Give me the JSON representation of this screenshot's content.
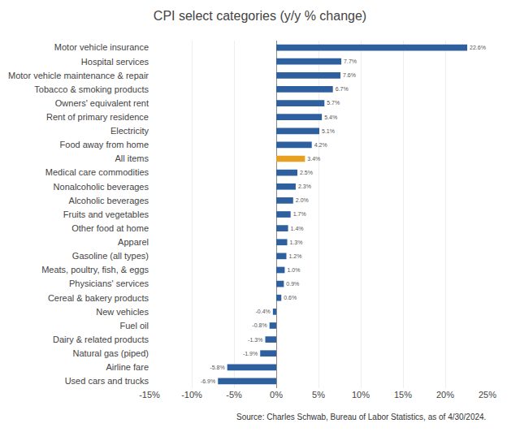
{
  "chart_data": {
    "type": "bar",
    "orientation": "horizontal",
    "title": "CPI select categories (y/y % change)",
    "annotations": [
      "Source: Charles Schwab, Bureau of Labor Statistics, as of 4/30/2024."
    ],
    "categories": [
      "Motor vehicle insurance",
      "Hospital services",
      "Motor vehicle maintenance & repair",
      "Tobacco & smoking products",
      "Owners' equivalent rent",
      "Rent of primary residence",
      "Electricity",
      "Food away from home",
      "All items",
      "Medical care commodities",
      "Nonalcoholic beverages",
      "Alcoholic beverages",
      "Fruits and vegetables",
      "Other food at home",
      "Apparel",
      "Gasoline (all types)",
      "Meats, poultry, fish, & eggs",
      "Physicians' services",
      "Cereal & bakery products",
      "New vehicles",
      "Fuel oil",
      "Dairy & related products",
      "Natural gas (piped)",
      "Airline fare",
      "Used cars and trucks"
    ],
    "values": [
      22.6,
      7.7,
      7.6,
      6.7,
      5.7,
      5.4,
      5.1,
      4.2,
      3.4,
      2.5,
      2.3,
      2.0,
      1.7,
      1.4,
      1.3,
      1.2,
      1.0,
      0.9,
      0.6,
      -0.4,
      -0.8,
      -1.3,
      -1.9,
      -5.8,
      -6.9
    ],
    "value_labels": [
      "22.6%",
      "7.7%",
      "7.6%",
      "6.7%",
      "5.7%",
      "5.4%",
      "5.1%",
      "4.2%",
      "3.4%",
      "2.5%",
      "2.3%",
      "2.0%",
      "1.7%",
      "1.4%",
      "1.3%",
      "1.2%",
      "1.0%",
      "0.9%",
      "0.6%",
      "-0.4%",
      "-0.8%",
      "-1.3%",
      "-1.9%",
      "-5.8%",
      "-6.9%"
    ],
    "data_labels": true,
    "colors": [
      "#2E5F9E",
      "#2E5F9E",
      "#2E5F9E",
      "#2E5F9E",
      "#2E5F9E",
      "#2E5F9E",
      "#2E5F9E",
      "#2E5F9E",
      "#E8A020",
      "#2E5F9E",
      "#2E5F9E",
      "#2E5F9E",
      "#2E5F9E",
      "#2E5F9E",
      "#2E5F9E",
      "#2E5F9E",
      "#2E5F9E",
      "#2E5F9E",
      "#2E5F9E",
      "#2E5F9E",
      "#2E5F9E",
      "#2E5F9E",
      "#2E5F9E",
      "#2E5F9E",
      "#2E5F9E"
    ],
    "xlim": [
      -15,
      25
    ],
    "xticks": [
      {
        "value": -15,
        "label": "-15%"
      },
      {
        "value": -10,
        "label": "-10%"
      },
      {
        "value": -5,
        "label": "-5%"
      },
      {
        "value": 0,
        "label": "0%"
      },
      {
        "value": 5,
        "label": "5%"
      },
      {
        "value": 10,
        "label": "10%"
      },
      {
        "value": 15,
        "label": "15%"
      },
      {
        "value": 20,
        "label": "20%"
      },
      {
        "value": 25,
        "label": "25%"
      }
    ],
    "grid": true
  }
}
